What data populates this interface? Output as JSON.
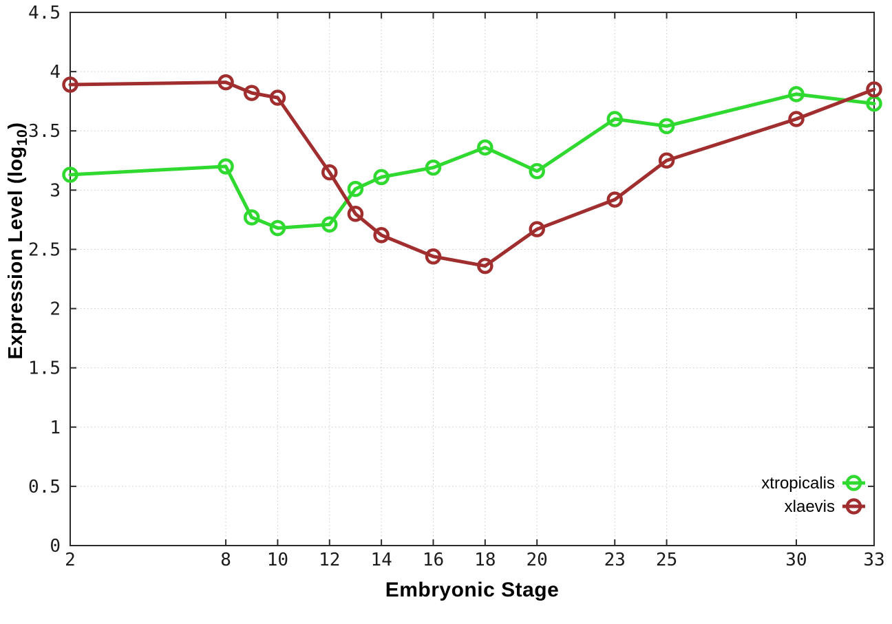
{
  "chart_data": {
    "type": "line",
    "title": "",
    "xlabel": "Embryonic Stage",
    "ylabel": "Expression Level (log10)",
    "ylabel_main": "Expression Level (log",
    "ylabel_sub": "10",
    "ylabel_close": ")",
    "xlim": [
      2,
      33
    ],
    "ylim": [
      0,
      4.5
    ],
    "x_ticks": [
      2,
      8,
      10,
      12,
      14,
      16,
      18,
      20,
      23,
      25,
      30,
      33
    ],
    "y_ticks": [
      "0",
      "0.5",
      "1",
      "1.5",
      "2",
      "2.5",
      "3",
      "3.5",
      "4",
      "4.5"
    ],
    "grid": true,
    "legend_position": "inside-bottom-right",
    "x": [
      2,
      8,
      9,
      10,
      12,
      13,
      14,
      16,
      18,
      20,
      23,
      25,
      30,
      33
    ],
    "series": [
      {
        "name": "xtropicalis",
        "color": "#30d930",
        "values": [
          3.13,
          3.2,
          2.77,
          2.68,
          2.71,
          3.01,
          3.11,
          3.19,
          3.36,
          3.16,
          3.6,
          3.54,
          3.81,
          3.73
        ]
      },
      {
        "name": "xlaevis",
        "color": "#a12e2e",
        "values": [
          3.89,
          3.91,
          3.82,
          3.78,
          3.15,
          2.8,
          2.62,
          2.44,
          2.36,
          2.67,
          2.92,
          3.25,
          3.6,
          3.85
        ]
      }
    ],
    "colors": {
      "grid": "#c9c9c9",
      "axis": "#2b2b2b",
      "tick_text": "#1c1c1c",
      "legend_text": "#000000",
      "background": "#ffffff"
    }
  }
}
